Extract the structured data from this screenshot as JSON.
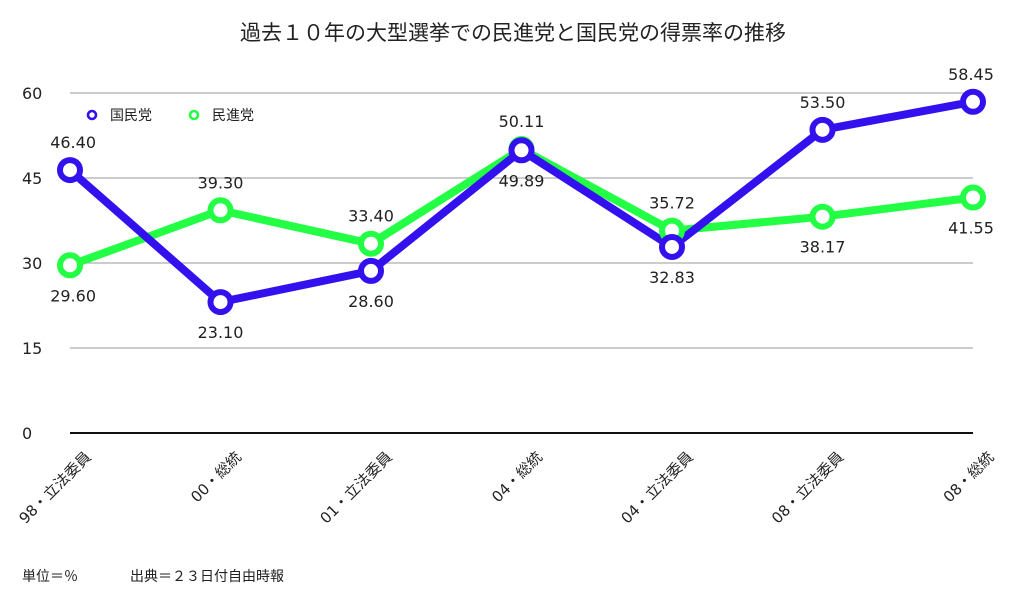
{
  "chart_data": {
    "type": "line",
    "title": "過去１０年の大型選挙での民進党と国民党の得票率の推移",
    "categories": [
      "98・立法委員",
      "00・総統",
      "01・立法委員",
      "04・総統",
      "04・立法委員",
      "08・立法委員",
      "08・総統"
    ],
    "series": [
      {
        "name": "国民党",
        "color": "#3311ee",
        "values": [
          46.4,
          23.1,
          28.6,
          49.89,
          32.83,
          53.5,
          58.45
        ],
        "labels": [
          "46.40",
          "23.10",
          "28.60",
          "49.89",
          "32.83",
          "53.50",
          "58.45"
        ]
      },
      {
        "name": "民進党",
        "color": "#22ff44",
        "values": [
          29.6,
          39.3,
          33.4,
          50.11,
          35.72,
          38.17,
          41.55
        ],
        "labels": [
          "29.60",
          "39.30",
          "33.40",
          "50.11",
          "35.72",
          "38.17",
          "41.55"
        ]
      }
    ],
    "yticks": [
      "0",
      "15",
      "30",
      "45",
      "60"
    ],
    "ylim": [
      0,
      60
    ],
    "grid": true,
    "legend_position": "top-left"
  },
  "footnote": {
    "unit": "単位＝％",
    "source": "出典＝２３日付自由時報"
  }
}
